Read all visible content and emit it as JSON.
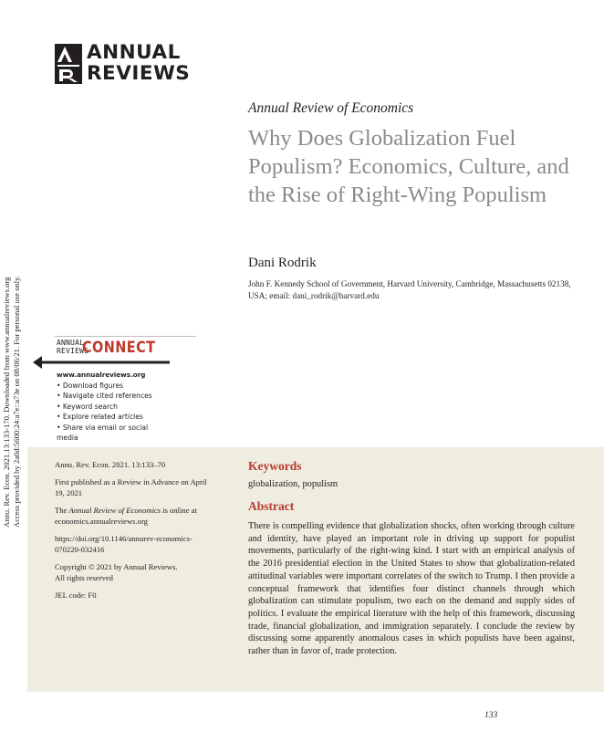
{
  "side_stamp": {
    "line1": "Annu. Rev. Econ. 2021.13:133-170. Downloaded from www.annualreviews.org",
    "line2": "Access provided by 2a0d:5600:24:a7e::a73e on 08/06/21. For personal use only."
  },
  "logo": {
    "line1": "ANNUAL",
    "line2": "REVIEWS"
  },
  "journal": "Annual Review of Economics",
  "title": "Why Does Globalization Fuel Populism? Economics, Culture, and the Rise of Right-Wing Populism",
  "author": "Dani Rodrik",
  "affiliation": "John F. Kennedy School of Government, Harvard University, Cambridge, Massachusetts 02138, USA; email: dani_rodrik@harvard.edu",
  "connect": {
    "small1": "ANNUAL",
    "small2": "REVIEWS",
    "big": "CONNECT",
    "site": "www.annualreviews.org",
    "items": [
      "Download figures",
      "Navigate cited references",
      "Keyword search",
      "Explore related articles",
      "Share via email or social media"
    ]
  },
  "meta": {
    "citation": "Annu. Rev. Econ. 2021. 13:133–70",
    "first_published": "First published as a Review in Advance on April 19, 2021",
    "online_pre": "The ",
    "online_journal": "Annual Review of Economics",
    "online_post": " is online at economics.annualreviews.org",
    "doi": "https://doi.org/10.1146/annurev-economics-070220-032416",
    "copyright": "Copyright © 2021 by Annual Reviews.",
    "rights": "All rights reserved",
    "jel": "JEL code: F0"
  },
  "keywords_heading": "Keywords",
  "keywords": "globalization, populism",
  "abstract_heading": "Abstract",
  "abstract": "There is compelling evidence that globalization shocks, often working through culture and identity, have played an important role in driving up support for populist movements, particularly of the right-wing kind. I start with an empirical analysis of the 2016 presidential election in the United States to show that globalization-related attitudinal variables were important correlates of the switch to Trump. I then provide a conceptual framework that identifies four distinct channels through which globalization can stimulate populism, two each on the demand and supply sides of politics. I evaluate the empirical literature with the help of this framework, discussing trade, financial globalization, and immigration separately. I conclude the review by discussing some apparently anomalous cases in which populists have been against, rather than in favor of, trade protection.",
  "page_number": "133"
}
